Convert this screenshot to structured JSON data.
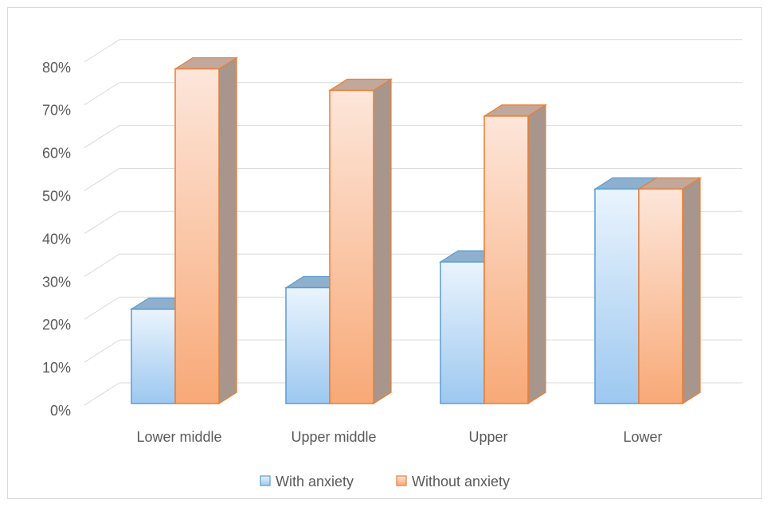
{
  "chart_data": {
    "type": "bar",
    "style": "3d-clustered-column",
    "categories": [
      "Lower middle",
      "Upper middle",
      "Upper",
      "Lower"
    ],
    "series": [
      {
        "name": "With anxiety",
        "values": [
          22,
          27,
          33,
          50
        ],
        "color": "#9dc8f0",
        "edge": "#5b9bd5"
      },
      {
        "name": "Without anxiety",
        "values": [
          78,
          73,
          67,
          50
        ],
        "color": "#f8b48a",
        "edge": "#ed7d31"
      }
    ],
    "y_ticks": [
      "0%",
      "10%",
      "20%",
      "30%",
      "40%",
      "50%",
      "60%",
      "70%",
      "80%"
    ],
    "ylim": [
      0,
      80
    ],
    "grid": true,
    "legend_position": "bottom",
    "title": "",
    "xlabel": "",
    "ylabel": ""
  }
}
